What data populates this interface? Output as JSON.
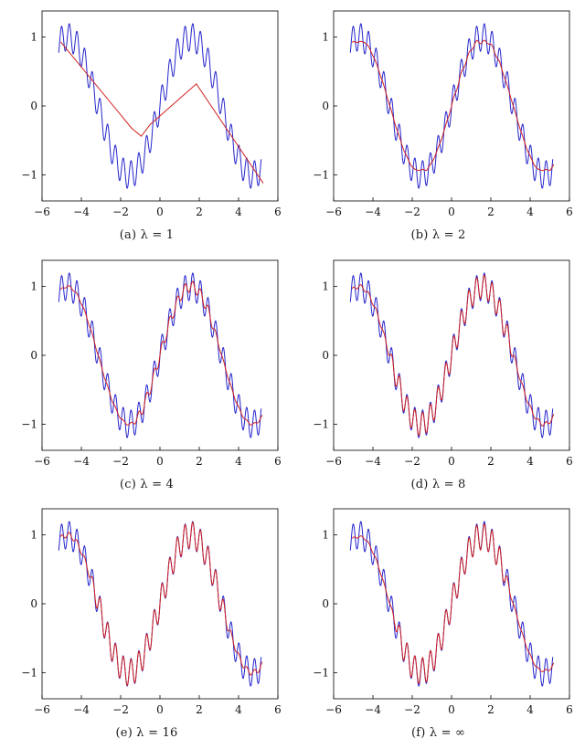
{
  "page": {
    "background": "#ffffff",
    "description": "Six line plots comparing a noisy sinusoidal signal (blue) with regularized fits (red) for increasing regularization parameter lambda"
  },
  "chart_data": [
    {
      "id": "a",
      "type": "line",
      "caption": "(a) λ = 1",
      "xlim": [
        -6,
        6
      ],
      "ylim": [
        -1.38,
        1.38
      ],
      "xticks": [
        -6,
        -4,
        -2,
        0,
        2,
        4,
        6
      ],
      "yticks": [
        -1,
        0,
        1
      ],
      "grid": false,
      "legend": "none",
      "signal": {
        "name": "noisy signal",
        "color": "#2525cc",
        "formula": "sin(x) + 0.2·sin(16x)",
        "base_amp": 1,
        "ripple_amp": 0.2,
        "ripple_freq": 16,
        "x_range": [
          -5.15,
          5.15
        ]
      },
      "fit": {
        "name": "fit lambda=1",
        "color": "#d02020",
        "mode": "points",
        "points": [
          [
            -5.05,
            0.93
          ],
          [
            -1.45,
            -0.32
          ],
          [
            -0.95,
            -0.44
          ],
          [
            -0.5,
            -0.27
          ],
          [
            1.85,
            0.32
          ],
          [
            5.25,
            -1.12
          ]
        ]
      }
    },
    {
      "id": "b",
      "type": "line",
      "caption": "(b) λ = 2",
      "xlim": [
        -6,
        6
      ],
      "ylim": [
        -1.38,
        1.38
      ],
      "xticks": [
        -6,
        -4,
        -2,
        0,
        2,
        4,
        6
      ],
      "yticks": [
        -1,
        0,
        1
      ],
      "grid": false,
      "legend": "none",
      "signal": {
        "name": "noisy signal",
        "color": "#2525cc",
        "formula": "sin(x) + 0.2·sin(16x)",
        "base_amp": 1,
        "ripple_amp": 0.2,
        "ripple_freq": 16,
        "x_range": [
          -5.15,
          5.15
        ]
      },
      "fit": {
        "name": "fit lambda=2",
        "color": "#d02020",
        "mode": "params",
        "amp": 0.97,
        "clip": 0.93,
        "follow_in": 0.12,
        "follow_out": 0.04,
        "window": [
          0.3,
          2.2
        ],
        "edge": 0.7,
        "x_range": [
          -5.05,
          5.2
        ]
      }
    },
    {
      "id": "c",
      "type": "line",
      "caption": "(c) λ = 4",
      "xlim": [
        -6,
        6
      ],
      "ylim": [
        -1.38,
        1.38
      ],
      "xticks": [
        -6,
        -4,
        -2,
        0,
        2,
        4,
        6
      ],
      "yticks": [
        -1,
        0,
        1
      ],
      "grid": false,
      "legend": "none",
      "signal": {
        "name": "noisy signal",
        "color": "#2525cc",
        "formula": "sin(x) + 0.2·sin(16x)",
        "base_amp": 1,
        "ripple_amp": 0.2,
        "ripple_freq": 16,
        "x_range": [
          -5.15,
          5.15
        ]
      },
      "fit": {
        "name": "fit lambda=4",
        "color": "#d02020",
        "mode": "params",
        "amp": 1.0,
        "clip": 1.04,
        "follow_in": 0.4,
        "follow_out": 0.08,
        "window": [
          -0.8,
          2.4
        ],
        "edge": 0.8,
        "x_range": [
          -5.05,
          5.2
        ]
      }
    },
    {
      "id": "d",
      "type": "line",
      "caption": "(d) λ = 8",
      "xlim": [
        -6,
        6
      ],
      "ylim": [
        -1.38,
        1.38
      ],
      "xticks": [
        -6,
        -4,
        -2,
        0,
        2,
        4,
        6
      ],
      "yticks": [
        -1,
        0,
        1
      ],
      "grid": false,
      "legend": "none",
      "signal": {
        "name": "noisy signal",
        "color": "#2525cc",
        "formula": "sin(x) + 0.2·sin(16x)",
        "base_amp": 1,
        "ripple_amp": 0.2,
        "ripple_freq": 16,
        "x_range": [
          -5.15,
          5.15
        ]
      },
      "fit": {
        "name": "fit lambda=8",
        "color": "#d02020",
        "mode": "params",
        "amp": 1.0,
        "clip": 1.1,
        "follow_in": 0.85,
        "follow_out": 0.15,
        "window": [
          -2.6,
          2.6
        ],
        "edge": 0.9,
        "x_range": [
          -5.05,
          5.2
        ]
      }
    },
    {
      "id": "e",
      "type": "line",
      "caption": "(e) λ = 16",
      "xlim": [
        -6,
        6
      ],
      "ylim": [
        -1.38,
        1.38
      ],
      "xticks": [
        -6,
        -4,
        -2,
        0,
        2,
        4,
        6
      ],
      "yticks": [
        -1,
        0,
        1
      ],
      "grid": false,
      "legend": "none",
      "signal": {
        "name": "noisy signal",
        "color": "#2525cc",
        "formula": "sin(x) + 0.2·sin(16x)",
        "base_amp": 1,
        "ripple_amp": 0.2,
        "ripple_freq": 16,
        "x_range": [
          -5.15,
          5.15
        ]
      },
      "fit": {
        "name": "fit lambda=16",
        "color": "#d02020",
        "mode": "params",
        "amp": 1.0,
        "clip": 1.1,
        "follow_in": 0.95,
        "follow_out": 0.2,
        "window": [
          -2.9,
          2.9
        ],
        "edge": 0.9,
        "x_range": [
          -5.05,
          5.2
        ]
      }
    },
    {
      "id": "f",
      "type": "line",
      "caption": "(f) λ = ∞",
      "xlim": [
        -6,
        6
      ],
      "ylim": [
        -1.38,
        1.38
      ],
      "xticks": [
        -6,
        -4,
        -2,
        0,
        2,
        4,
        6
      ],
      "yticks": [
        -1,
        0,
        1
      ],
      "grid": false,
      "legend": "none",
      "signal": {
        "name": "noisy signal",
        "color": "#2525cc",
        "formula": "sin(x) + 0.2·sin(16x)",
        "base_amp": 1,
        "ripple_amp": 0.2,
        "ripple_freq": 16,
        "x_range": [
          -5.15,
          5.15
        ]
      },
      "fit": {
        "name": "fit lambda=inf",
        "color": "#d02020",
        "mode": "params",
        "amp": 0.99,
        "clip": 0.97,
        "follow_in": 0.95,
        "follow_out": 0.08,
        "window": [
          -2.4,
          2.4
        ],
        "edge": 0.8,
        "x_range": [
          -5.05,
          5.2
        ]
      }
    }
  ]
}
